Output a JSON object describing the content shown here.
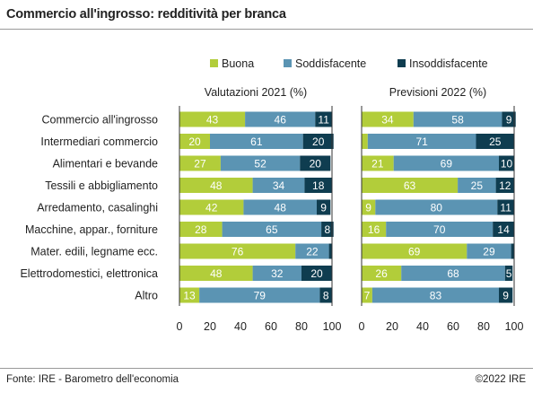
{
  "header": {
    "title": "Commercio all'ingrosso: redditività per branca"
  },
  "footer": {
    "source": "Fonte: IRE - Barometro dell'economia",
    "copyright": "©2022 IRE"
  },
  "colors": {
    "buona": "#b2cd3a",
    "soddisfacente": "#5b94b3",
    "insoddisfacente": "#0f3d50"
  },
  "chart_data": {
    "type": "bar",
    "orientation": "horizontal",
    "stacked": true,
    "legend_position": "top-right",
    "categories": [
      "Commercio all'ingrosso",
      "Intermediari commercio",
      "Alimentari e bevande",
      "Tessili e abbigliamento",
      "Arredamento, casalinghi",
      "Macchine, appar., forniture",
      "Mater. edili, legname ecc.",
      "Elettrodomestici, elettronica",
      "Altro"
    ],
    "series_names": [
      "Buona",
      "Soddisfacente",
      "Insoddisfacente"
    ],
    "panels": [
      {
        "title": "Valutazioni 2021 (%)",
        "xlim": [
          0,
          100
        ],
        "ticks": [
          0,
          20,
          40,
          60,
          80,
          100
        ],
        "series": [
          {
            "name": "Buona",
            "values": [
              43,
              20,
              27,
              48,
              42,
              28,
              76,
              48,
              13
            ]
          },
          {
            "name": "Soddisfacente",
            "values": [
              46,
              61,
              52,
              34,
              48,
              65,
              22,
              32,
              79
            ]
          },
          {
            "name": "Insoddisfacente",
            "values": [
              11,
              20,
              20,
              18,
              9,
              8,
              2,
              20,
              8
            ]
          }
        ]
      },
      {
        "title": "Previsioni 2022 (%)",
        "xlim": [
          0,
          100
        ],
        "ticks": [
          0,
          20,
          40,
          60,
          80,
          100
        ],
        "series": [
          {
            "name": "Buona",
            "values": [
              34,
              4,
              21,
              63,
              9,
              16,
              69,
              26,
              7
            ]
          },
          {
            "name": "Soddisfacente",
            "values": [
              58,
              71,
              69,
              25,
              80,
              70,
              29,
              68,
              83
            ]
          },
          {
            "name": "Insoddisfacente",
            "values": [
              9,
              25,
              10,
              12,
              11,
              14,
              2,
              5,
              9
            ]
          }
        ]
      }
    ],
    "hidden_labels": [
      {
        "panel": 0,
        "category": 6,
        "series": 2
      },
      {
        "panel": 1,
        "category": 1,
        "series": 0
      },
      {
        "panel": 1,
        "category": 6,
        "series": 2
      }
    ]
  }
}
